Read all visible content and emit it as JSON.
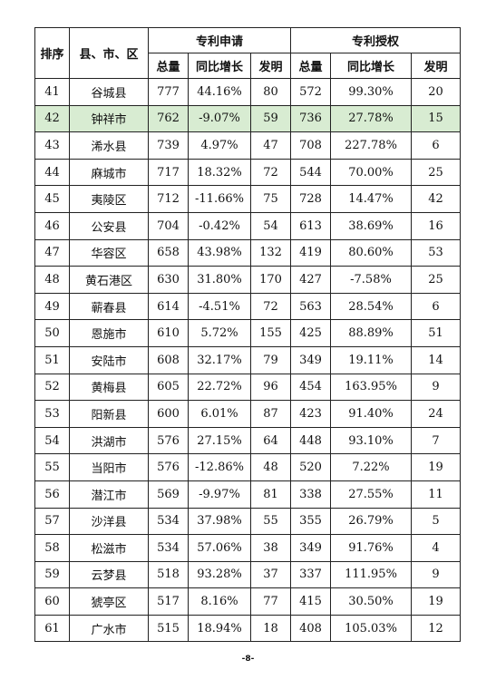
{
  "header": {
    "rank": "排序",
    "county": "县、市、区",
    "applications": "专利申请",
    "grants": "专利授权",
    "total": "总量",
    "growth": "同比增长",
    "invention": "发明"
  },
  "rows": [
    {
      "rank": "41",
      "name": "谷城县",
      "app_total": "777",
      "app_growth": "44.16%",
      "app_inv": "80",
      "grant_total": "572",
      "grant_growth": "99.30%",
      "grant_inv": "20"
    },
    {
      "rank": "42",
      "name": "钟祥市",
      "app_total": "762",
      "app_growth": "-9.07%",
      "app_inv": "59",
      "grant_total": "736",
      "grant_growth": "27.78%",
      "grant_inv": "15"
    },
    {
      "rank": "43",
      "name": "浠水县",
      "app_total": "739",
      "app_growth": "4.97%",
      "app_inv": "47",
      "grant_total": "708",
      "grant_growth": "227.78%",
      "grant_inv": "6"
    },
    {
      "rank": "44",
      "name": "麻城市",
      "app_total": "717",
      "app_growth": "18.32%",
      "app_inv": "72",
      "grant_total": "544",
      "grant_growth": "70.00%",
      "grant_inv": "25"
    },
    {
      "rank": "45",
      "name": "夷陵区",
      "app_total": "712",
      "app_growth": "-11.66%",
      "app_inv": "75",
      "grant_total": "728",
      "grant_growth": "14.47%",
      "grant_inv": "42"
    },
    {
      "rank": "46",
      "name": "公安县",
      "app_total": "704",
      "app_growth": "-0.42%",
      "app_inv": "54",
      "grant_total": "613",
      "grant_growth": "38.69%",
      "grant_inv": "16"
    },
    {
      "rank": "47",
      "name": "华容区",
      "app_total": "658",
      "app_growth": "43.98%",
      "app_inv": "132",
      "grant_total": "419",
      "grant_growth": "80.60%",
      "grant_inv": "53"
    },
    {
      "rank": "48",
      "name": "黄石港区",
      "app_total": "630",
      "app_growth": "31.80%",
      "app_inv": "170",
      "grant_total": "427",
      "grant_growth": "-7.58%",
      "grant_inv": "25"
    },
    {
      "rank": "49",
      "name": "蕲春县",
      "app_total": "614",
      "app_growth": "-4.51%",
      "app_inv": "72",
      "grant_total": "563",
      "grant_growth": "28.54%",
      "grant_inv": "6"
    },
    {
      "rank": "50",
      "name": "恩施市",
      "app_total": "610",
      "app_growth": "5.72%",
      "app_inv": "155",
      "grant_total": "425",
      "grant_growth": "88.89%",
      "grant_inv": "51"
    },
    {
      "rank": "51",
      "name": "安陆市",
      "app_total": "608",
      "app_growth": "32.17%",
      "app_inv": "79",
      "grant_total": "349",
      "grant_growth": "19.11%",
      "grant_inv": "14"
    },
    {
      "rank": "52",
      "name": "黄梅县",
      "app_total": "605",
      "app_growth": "22.72%",
      "app_inv": "96",
      "grant_total": "454",
      "grant_growth": "163.95%",
      "grant_inv": "9"
    },
    {
      "rank": "53",
      "name": "阳新县",
      "app_total": "600",
      "app_growth": "6.01%",
      "app_inv": "87",
      "grant_total": "423",
      "grant_growth": "91.40%",
      "grant_inv": "24"
    },
    {
      "rank": "54",
      "name": "洪湖市",
      "app_total": "576",
      "app_growth": "27.15%",
      "app_inv": "64",
      "grant_total": "448",
      "grant_growth": "93.10%",
      "grant_inv": "7"
    },
    {
      "rank": "55",
      "name": "当阳市",
      "app_total": "576",
      "app_growth": "-12.86%",
      "app_inv": "48",
      "grant_total": "520",
      "grant_growth": "7.22%",
      "grant_inv": "19"
    },
    {
      "rank": "56",
      "name": "潜江市",
      "app_total": "569",
      "app_growth": "-9.97%",
      "app_inv": "81",
      "grant_total": "338",
      "grant_growth": "27.55%",
      "grant_inv": "11"
    },
    {
      "rank": "57",
      "name": "沙洋县",
      "app_total": "534",
      "app_growth": "37.98%",
      "app_inv": "55",
      "grant_total": "355",
      "grant_growth": "26.79%",
      "grant_inv": "5"
    },
    {
      "rank": "58",
      "name": "松滋市",
      "app_total": "534",
      "app_growth": "57.06%",
      "app_inv": "38",
      "grant_total": "349",
      "grant_growth": "91.76%",
      "grant_inv": "4"
    },
    {
      "rank": "59",
      "name": "云梦县",
      "app_total": "518",
      "app_growth": "93.28%",
      "app_inv": "37",
      "grant_total": "337",
      "grant_growth": "111.95%",
      "grant_inv": "9"
    },
    {
      "rank": "60",
      "name": "猇亭区",
      "app_total": "517",
      "app_growth": "8.16%",
      "app_inv": "77",
      "grant_total": "415",
      "grant_growth": "30.50%",
      "grant_inv": "19"
    },
    {
      "rank": "61",
      "name": "广水市",
      "app_total": "515",
      "app_growth": "18.94%",
      "app_inv": "18",
      "grant_total": "408",
      "grant_growth": "105.03%",
      "grant_inv": "12"
    }
  ],
  "highlight_row_index": 1,
  "highlight_color": "#d8ecd2",
  "page_number": "-8-"
}
